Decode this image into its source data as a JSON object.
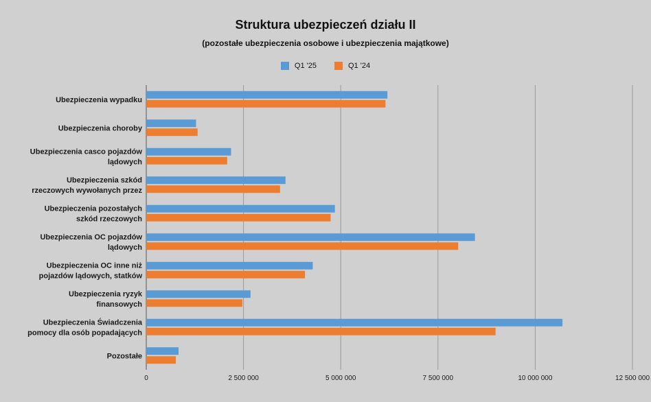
{
  "chart_data": {
    "type": "bar",
    "orientation": "horizontal",
    "title": "Struktura ubezpieczeń działu II",
    "subtitle": "(pozostałe ubezpieczenia osobowe i ubezpieczenia majątkowe)",
    "categories": [
      [
        "Ubezpieczenia wypadku"
      ],
      [
        "Ubezpieczenia choroby"
      ],
      [
        "Ubezpieczenia casco pojazdów",
        "lądowych"
      ],
      [
        "Ubezpieczenia szkód",
        "rzeczowych wywołanych przez"
      ],
      [
        "Ubezpieczenia pozostałych",
        "szkód rzeczowych"
      ],
      [
        "Ubezpieczenia OC pojazdów",
        "lądowych"
      ],
      [
        "Ubezpieczenia OC inne niż",
        "pojazdów lądowych, statków"
      ],
      [
        "Ubezpieczenia ryzyk",
        "finansowych"
      ],
      [
        "Ubezpieczenia Świadczenia",
        "pomocy dla osób popadających"
      ],
      [
        "Pozostałe"
      ]
    ],
    "series": [
      {
        "name": "Q1 '25",
        "color": "#5b9bd5",
        "values": [
          6200000,
          1280000,
          2180000,
          3580000,
          4850000,
          8450000,
          4280000,
          2680000,
          10700000,
          830000
        ]
      },
      {
        "name": "Q1 '24",
        "color": "#ed7d31",
        "values": [
          6150000,
          1320000,
          2080000,
          3440000,
          4740000,
          8020000,
          4080000,
          2470000,
          8980000,
          760000
        ]
      }
    ],
    "xlim": [
      0,
      12500000
    ],
    "xticks": [
      0,
      2500000,
      5000000,
      7500000,
      10000000,
      12500000
    ],
    "xtick_labels": [
      "0",
      "2 500 000",
      "5 000 000",
      "7 500 000",
      "10 000 000",
      "12 500 000"
    ],
    "grid": true,
    "legend_position": "top-center"
  }
}
